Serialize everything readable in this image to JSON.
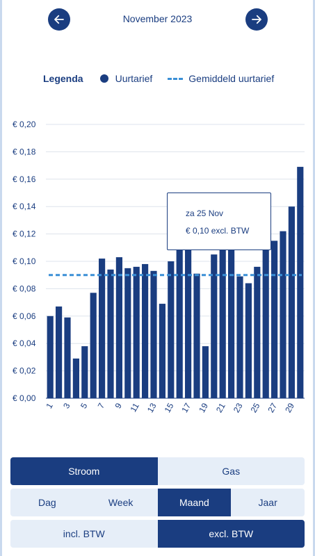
{
  "header": {
    "month": "November 2023",
    "prev_icon": "arrow-left-icon",
    "next_icon": "arrow-right-icon"
  },
  "legend": {
    "title": "Legenda",
    "bar_label": "Uurtarief",
    "avg_label": "Gemiddeld uurtarief"
  },
  "tooltip": {
    "date": "za 25 Nov",
    "value": "€ 0,10 excl. BTW"
  },
  "colors": {
    "bar": "#1a3d80",
    "average": "#3a8fd6",
    "grid": "#dde3ec",
    "inactive_bg": "#e6eef8"
  },
  "chart_data": {
    "type": "bar",
    "categories": [
      "1",
      "2",
      "3",
      "4",
      "5",
      "6",
      "7",
      "8",
      "9",
      "10",
      "11",
      "12",
      "13",
      "14",
      "15",
      "16",
      "17",
      "18",
      "19",
      "20",
      "21",
      "22",
      "23",
      "24",
      "25",
      "26",
      "27",
      "28",
      "29",
      "30"
    ],
    "x_tick_labels": [
      "1",
      "3",
      "5",
      "7",
      "9",
      "11",
      "13",
      "15",
      "17",
      "19",
      "21",
      "23",
      "25",
      "27",
      "29"
    ],
    "series": [
      {
        "name": "Uurtarief",
        "values": [
          0.06,
          0.067,
          0.059,
          0.029,
          0.038,
          0.077,
          0.102,
          0.094,
          0.103,
          0.095,
          0.096,
          0.098,
          0.093,
          0.069,
          0.1,
          0.11,
          0.11,
          0.091,
          0.038,
          0.105,
          0.11,
          0.11,
          0.089,
          0.084,
          0.096,
          0.11,
          0.115,
          0.122,
          0.14,
          0.169
        ]
      }
    ],
    "average": 0.09,
    "ylim": [
      0,
      0.2
    ],
    "y_ticks": [
      0.0,
      0.02,
      0.04,
      0.06,
      0.08,
      0.1,
      0.12,
      0.14,
      0.16,
      0.18,
      0.2
    ],
    "y_tick_labels": [
      "€ 0,00",
      "€ 0,02",
      "€ 0,04",
      "€ 0,06",
      "€ 0,08",
      "€ 0,10",
      "€ 0,12",
      "€ 0,14",
      "€ 0,16",
      "€ 0,18",
      "€ 0,20"
    ],
    "grid": true,
    "title": "",
    "xlabel": "",
    "ylabel": ""
  },
  "controls": {
    "energy": [
      {
        "label": "Stroom",
        "active": true
      },
      {
        "label": "Gas",
        "active": false
      }
    ],
    "period": [
      {
        "label": "Dag",
        "active": false
      },
      {
        "label": "Week",
        "active": false
      },
      {
        "label": "Maand",
        "active": true
      },
      {
        "label": "Jaar",
        "active": false
      }
    ],
    "btw": [
      {
        "label": "incl. BTW",
        "active": false
      },
      {
        "label": "excl. BTW",
        "active": true
      }
    ]
  }
}
